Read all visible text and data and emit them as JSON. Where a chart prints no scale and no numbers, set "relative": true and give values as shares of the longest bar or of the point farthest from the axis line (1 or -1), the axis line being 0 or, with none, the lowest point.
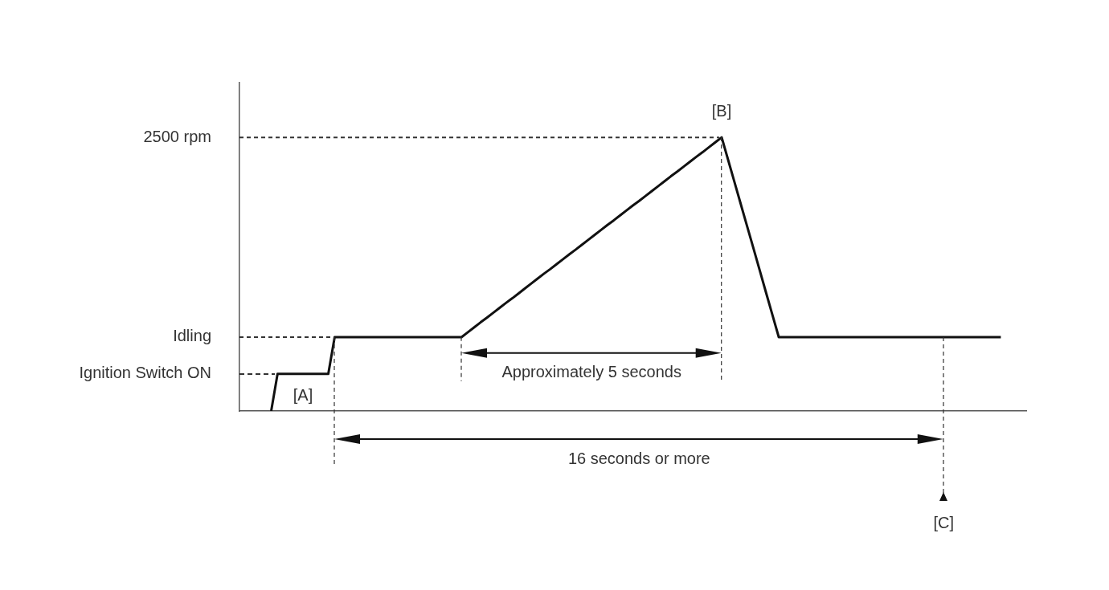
{
  "chart_data": {
    "type": "line",
    "relative": true,
    "grid": false,
    "legend": false,
    "marker": "none",
    "line_style": "solid",
    "categories": [
      null,
      null,
      null,
      null,
      null,
      null,
      null,
      null,
      null,
      null,
      null,
      null,
      null,
      null,
      null,
      null,
      null,
      null,
      null,
      null,
      null,
      null,
      null,
      null,
      null,
      null,
      null,
      null,
      null,
      null,
      null,
      null,
      null,
      null,
      null,
      null,
      null,
      null,
      null,
      null,
      null,
      null,
      null,
      null,
      null,
      null,
      null,
      null,
      null,
      null,
      null,
      null,
      null,
      null,
      null,
      null,
      null,
      null,
      null,
      null,
      null,
      null,
      null,
      null,
      null,
      null,
      null,
      null,
      null,
      null,
      null,
      null,
      null,
      null,
      null,
      null,
      null,
      null,
      null,
      null,
      null,
      null,
      null,
      null,
      null,
      null,
      null,
      null,
      null,
      null,
      null,
      null,
      null,
      null,
      null,
      null,
      null,
      null,
      null,
      null,
      null,
      null,
      null,
      null,
      null,
      null,
      null,
      null,
      null,
      null,
      null,
      null,
      null,
      null,
      null,
      null,
      null,
      null,
      null,
      null,
      null,
      null,
      null,
      null,
      null
    ],
    "series": [
      {
        "color": "#111111",
        "values": [
          null,
          null,
          null,
          null,
          null,
          0,
          0.136,
          0.136,
          0.136,
          0.136,
          0.136,
          0.136,
          0.136,
          0.136,
          0.136,
          0.27,
          0.27,
          0.27,
          0.27,
          0.27,
          0.27,
          0.27,
          0.27,
          0.27,
          0.27,
          0.27,
          0.27,
          0.27,
          0.27,
          0.27,
          0.27,
          0.27,
          0.27,
          0.27,
          0.27,
          0.27,
          0.288,
          0.306,
          0.324,
          0.341,
          0.359,
          0.377,
          0.395,
          0.412,
          0.43,
          0.448,
          0.466,
          0.484,
          0.502,
          0.519,
          0.537,
          0.555,
          0.573,
          0.59,
          0.608,
          0.626,
          0.644,
          0.662,
          0.68,
          0.697,
          0.715,
          0.733,
          0.751,
          0.768,
          0.786,
          0.804,
          0.822,
          0.84,
          0.858,
          0.875,
          0.893,
          0.911,
          0.929,
          0.946,
          0.964,
          0.982,
          1,
          0.919,
          0.838,
          0.757,
          0.676,
          0.595,
          0.514,
          0.432,
          0.351,
          0.27,
          0.27,
          0.27,
          0.27,
          0.27,
          0.27,
          0.27,
          0.27,
          0.27,
          0.27,
          0.27,
          0.27,
          0.27,
          0.27,
          0.27,
          0.27,
          0.27,
          0.27,
          0.27,
          0.27,
          0.27,
          0.27,
          0.27,
          0.27,
          0.27,
          0.27,
          0.27,
          0.27,
          0.27,
          0.27,
          0.27,
          0.27,
          0.27,
          0.27,
          0.27,
          0.27,
          null,
          null,
          null,
          null
        ]
      }
    ],
    "ref_lines": [
      {
        "axis": "y",
        "value": 0.27,
        "label": "Idling",
        "line_style": "dashed"
      },
      {
        "axis": "y",
        "value": 1,
        "label": "2500 rpm",
        "line_style": "dashed"
      }
    ],
    "annotations": [
      "[A]",
      "Approximately 5 seconds",
      "16 seconds or more",
      "[B]",
      "[C]",
      "Ignition Switch ON"
    ]
  }
}
